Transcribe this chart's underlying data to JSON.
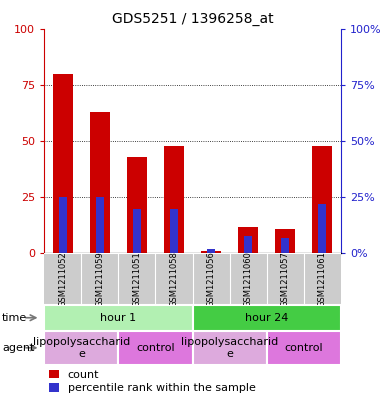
{
  "title": "GDS5251 / 1396258_at",
  "samples": [
    "GSM1211052",
    "GSM1211059",
    "GSM1211051",
    "GSM1211058",
    "GSM1211056",
    "GSM1211060",
    "GSM1211057",
    "GSM1211061"
  ],
  "count_values": [
    80,
    63,
    43,
    48,
    1,
    12,
    11,
    48
  ],
  "percentile_values": [
    25,
    25,
    20,
    20,
    2,
    8,
    7,
    22
  ],
  "bar_width": 0.55,
  "percentile_bar_width": 0.22,
  "ylim": [
    0,
    100
  ],
  "yticks": [
    0,
    25,
    50,
    75,
    100
  ],
  "count_color": "#cc0000",
  "percentile_color": "#3333cc",
  "time_groups": [
    {
      "label": "hour 1",
      "start": 0,
      "end": 4,
      "color": "#b2f0b2"
    },
    {
      "label": "hour 24",
      "start": 4,
      "end": 8,
      "color": "#44cc44"
    }
  ],
  "agent_groups": [
    {
      "label": "lipopolysaccharid\ne",
      "start": 0,
      "end": 2,
      "color": "#ddaadd"
    },
    {
      "label": "control",
      "start": 2,
      "end": 4,
      "color": "#dd77dd"
    },
    {
      "label": "lipopolysaccharid\ne",
      "start": 4,
      "end": 6,
      "color": "#ddaadd"
    },
    {
      "label": "control",
      "start": 6,
      "end": 8,
      "color": "#dd77dd"
    }
  ],
  "legend_count_label": "count",
  "legend_pct_label": "percentile rank within the sample",
  "left_axis_color": "#cc0000",
  "right_axis_color": "#2222cc",
  "title_size": 10,
  "sample_label_size": 6,
  "band_label_size": 8,
  "side_label_size": 8,
  "legend_size": 8
}
